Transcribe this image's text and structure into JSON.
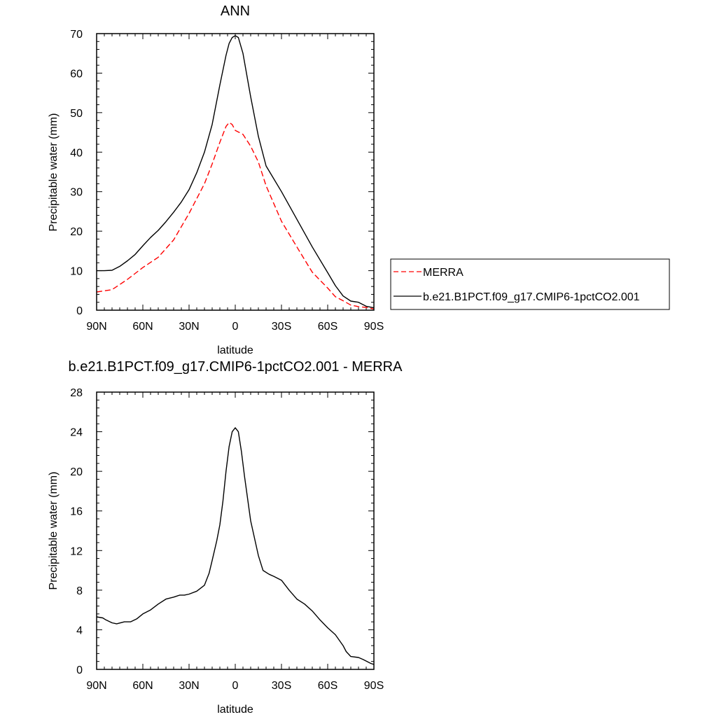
{
  "chart_data": [
    {
      "type": "line",
      "title": "ANN",
      "xlabel": "latitude",
      "ylabel": "Precipitable water (mm)",
      "xlim": [
        90,
        -90
      ],
      "ylim": [
        0,
        70
      ],
      "x_ticks": [
        {
          "value": 90,
          "label": "90N"
        },
        {
          "value": 60,
          "label": "60N"
        },
        {
          "value": 30,
          "label": "30N"
        },
        {
          "value": 0,
          "label": "0"
        },
        {
          "value": -30,
          "label": "30S"
        },
        {
          "value": -60,
          "label": "60S"
        },
        {
          "value": -90,
          "label": "90S"
        }
      ],
      "y_ticks": [
        0,
        10,
        20,
        30,
        40,
        50,
        60,
        70
      ],
      "grid": false,
      "legend_position": "right",
      "series": [
        {
          "name": "MERRA",
          "color": "#ff0000",
          "dash": "dashed",
          "x": [
            90,
            80,
            70,
            60,
            50,
            40,
            30,
            20,
            15,
            10,
            6,
            4,
            2,
            0,
            -5,
            -10,
            -15,
            -20,
            -30,
            -40,
            -50,
            -60,
            -65,
            -70,
            -75,
            -80,
            -85,
            -90
          ],
          "y": [
            4.6,
            5.2,
            7.8,
            10.8,
            13.4,
            17.8,
            24.5,
            32.0,
            37.0,
            42.5,
            46.5,
            47.5,
            47.0,
            45.5,
            44.5,
            41.5,
            37.5,
            31.5,
            22.5,
            16.0,
            9.6,
            5.6,
            3.4,
            2.4,
            1.3,
            0.9,
            0.7,
            0.3
          ]
        },
        {
          "name": "b.e21.B1PCT.f09_g17.CMIP6-1pctCO2.001",
          "color": "#000000",
          "dash": "solid",
          "x": [
            90,
            85,
            80,
            75,
            70,
            65,
            60,
            55,
            50,
            45,
            40,
            35,
            30,
            25,
            20,
            15,
            10,
            6,
            4,
            2,
            0,
            -2,
            -5,
            -10,
            -15,
            -20,
            -30,
            -40,
            -50,
            -60,
            -65,
            -70,
            -75,
            -80,
            -85,
            -90
          ],
          "y": [
            10.0,
            10.0,
            10.1,
            11.1,
            12.5,
            14.1,
            16.3,
            18.4,
            20.2,
            22.4,
            24.8,
            27.4,
            30.5,
            34.8,
            40.0,
            47.0,
            57.0,
            64.5,
            67.5,
            69.0,
            69.5,
            69.0,
            65.0,
            54.0,
            44.0,
            36.5,
            30.0,
            23.0,
            16.0,
            9.5,
            6.2,
            3.6,
            2.3,
            2.0,
            1.0,
            0.6
          ]
        }
      ]
    },
    {
      "type": "line",
      "title": "b.e21.B1PCT.f09_g17.CMIP6-1pctCO2.001 - MERRA",
      "xlabel": "latitude",
      "ylabel": "Precipitable water (mm)",
      "xlim": [
        90,
        -90
      ],
      "ylim": [
        0,
        28
      ],
      "x_ticks": [
        {
          "value": 90,
          "label": "90N"
        },
        {
          "value": 60,
          "label": "60N"
        },
        {
          "value": 30,
          "label": "30N"
        },
        {
          "value": 0,
          "label": "0"
        },
        {
          "value": -30,
          "label": "30S"
        },
        {
          "value": -60,
          "label": "60S"
        },
        {
          "value": -90,
          "label": "90S"
        }
      ],
      "y_ticks": [
        0,
        4,
        8,
        12,
        16,
        20,
        24,
        28
      ],
      "grid": false,
      "series": [
        {
          "color": "#000000",
          "dash": "solid",
          "x": [
            90,
            86,
            84,
            80,
            77,
            72,
            68,
            64,
            60,
            55,
            50,
            45,
            40,
            36,
            33,
            30,
            25,
            20,
            17,
            15,
            12,
            10,
            8,
            6,
            4,
            2,
            0,
            -2,
            -4,
            -6,
            -10,
            -15,
            -18,
            -22,
            -25,
            -30,
            -35,
            -40,
            -45,
            -50,
            -55,
            -60,
            -65,
            -70,
            -72,
            -75,
            -80,
            -83,
            -88,
            -90
          ],
          "y": [
            5.3,
            5.2,
            5.0,
            4.7,
            4.6,
            4.8,
            4.8,
            5.1,
            5.6,
            6.0,
            6.6,
            7.1,
            7.3,
            7.5,
            7.5,
            7.6,
            7.9,
            8.5,
            9.7,
            11.0,
            13.0,
            14.6,
            17.0,
            20.0,
            22.5,
            24.0,
            24.4,
            24.0,
            22.0,
            19.5,
            15.0,
            11.5,
            10.0,
            9.6,
            9.4,
            9.0,
            8.0,
            7.1,
            6.6,
            5.9,
            5.0,
            4.2,
            3.5,
            2.4,
            1.8,
            1.3,
            1.2,
            1.0,
            0.6,
            0.5
          ]
        }
      ]
    }
  ]
}
